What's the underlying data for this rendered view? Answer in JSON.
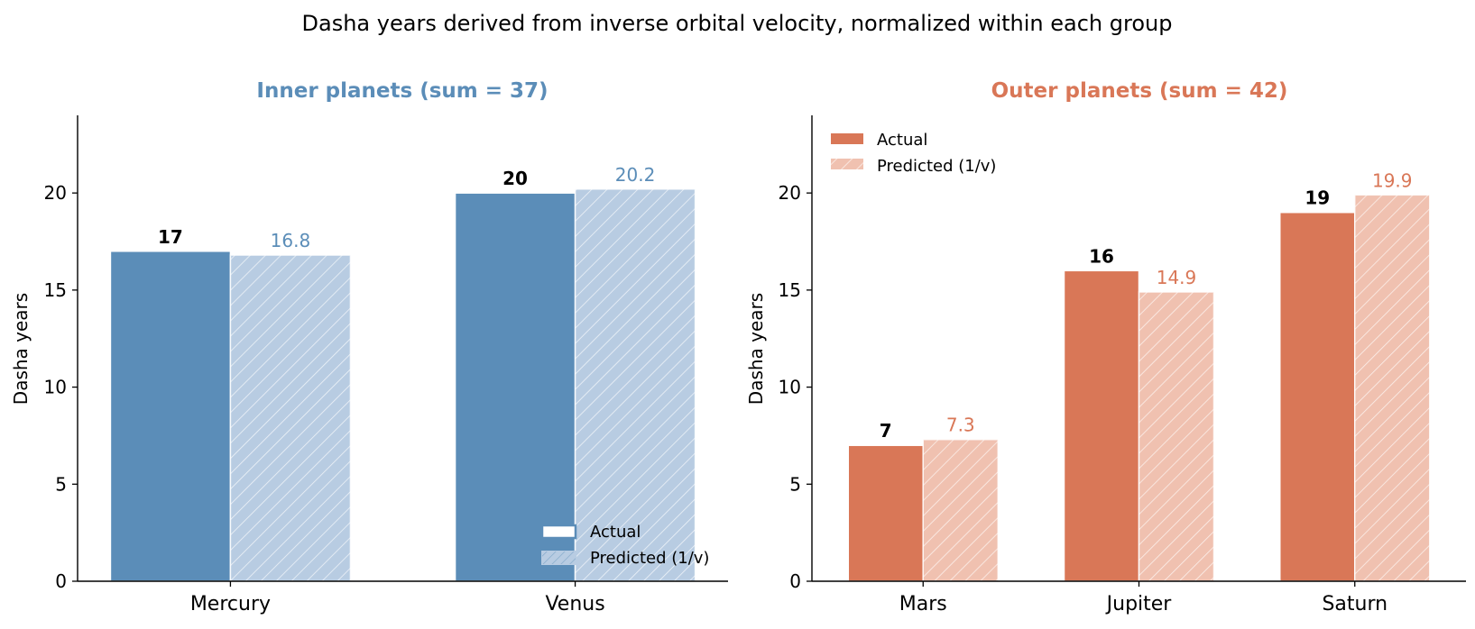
{
  "suptitle": "Dasha years derived from inverse orbital velocity, normalized within each group",
  "colors": {
    "inner": "#5b8db8",
    "inner_light": "#b8cce2",
    "outer": "#d97757",
    "outer_light": "#f0c1b0"
  },
  "chart_data": [
    {
      "type": "bar",
      "title": "Inner planets (sum = 37)",
      "ylabel": "Dasha years",
      "xlabel": "",
      "categories": [
        "Mercury",
        "Venus"
      ],
      "ylim": [
        0,
        24
      ],
      "yticks": [
        "0",
        "5",
        "10",
        "15",
        "20"
      ],
      "grid": false,
      "legend_position": "lower-right",
      "series": [
        {
          "name": "Actual",
          "values": [
            17,
            20
          ],
          "labels": [
            "17",
            "20"
          ]
        },
        {
          "name": "Predicted (1/v)",
          "values": [
            16.8,
            20.2
          ],
          "labels": [
            "16.8",
            "20.2"
          ]
        }
      ]
    },
    {
      "type": "bar",
      "title": "Outer planets (sum = 42)",
      "ylabel": "Dasha years",
      "xlabel": "",
      "categories": [
        "Mars",
        "Jupiter",
        "Saturn"
      ],
      "ylim": [
        0,
        24
      ],
      "yticks": [
        "0",
        "5",
        "10",
        "15",
        "20"
      ],
      "grid": false,
      "legend_position": "upper-left",
      "series": [
        {
          "name": "Actual",
          "values": [
            7,
            16,
            19
          ],
          "labels": [
            "7",
            "16",
            "19"
          ]
        },
        {
          "name": "Predicted (1/v)",
          "values": [
            7.3,
            14.9,
            19.9
          ],
          "labels": [
            "7.3",
            "14.9",
            "19.9"
          ]
        }
      ]
    }
  ]
}
